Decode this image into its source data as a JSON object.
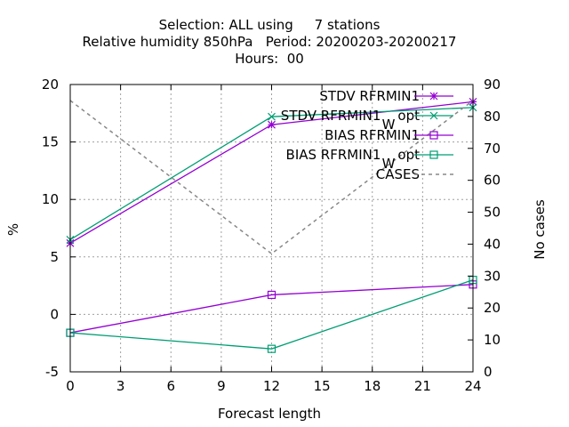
{
  "chart_data": {
    "type": "line",
    "title_lines": [
      "Selection: ALL using     7 stations",
      "Relative humidity 850hPa   Period: 20200203-20200217",
      "Hours:  00"
    ],
    "xlabel": "Forecast length",
    "ylabel": "%",
    "y2label": "No cases",
    "xlim": [
      0,
      24
    ],
    "ylim": [
      -5,
      20
    ],
    "y2lim": [
      0,
      90
    ],
    "xticks": [
      0,
      3,
      6,
      9,
      12,
      15,
      18,
      21,
      24
    ],
    "yticks": [
      -5,
      0,
      5,
      10,
      15,
      20
    ],
    "y2ticks": [
      0,
      10,
      20,
      30,
      40,
      50,
      60,
      70,
      80,
      90
    ],
    "grid": true,
    "legend_position": "top-right",
    "series": [
      {
        "name": "STDV RFRMIN1",
        "sub": "",
        "axis": "y",
        "color": "#9400d3",
        "dash": false,
        "marker": "star",
        "x": [
          0,
          12,
          24
        ],
        "values": [
          6.2,
          16.5,
          18.5
        ]
      },
      {
        "name": "STDV RFRMIN1",
        "sub": "W",
        "suffix": "opt",
        "axis": "y",
        "color": "#009e73",
        "dash": false,
        "marker": "xcross",
        "x": [
          0,
          12,
          24
        ],
        "values": [
          6.5,
          17.2,
          18.0
        ]
      },
      {
        "name": "BIAS RFRMIN1",
        "sub": "",
        "axis": "y",
        "color": "#9400d3",
        "dash": false,
        "marker": "square",
        "x": [
          0,
          12,
          24
        ],
        "values": [
          -1.6,
          1.7,
          2.6
        ]
      },
      {
        "name": "BIAS RFRMIN1",
        "sub": "W",
        "suffix": "opt",
        "axis": "y",
        "color": "#009e73",
        "dash": false,
        "marker": "square",
        "x": [
          0,
          12,
          24
        ],
        "values": [
          -1.6,
          -3.0,
          3.0
        ]
      },
      {
        "name": "CASES",
        "sub": "",
        "axis": "y2",
        "color": "#888888",
        "dash": true,
        "marker": "none",
        "x": [
          0,
          12,
          24
        ],
        "values": [
          85,
          37,
          85
        ]
      }
    ]
  }
}
